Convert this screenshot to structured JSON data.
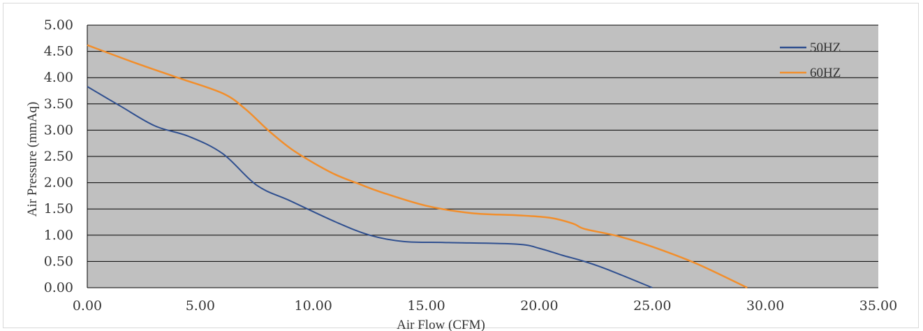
{
  "chart_data": {
    "type": "line",
    "xlabel": "Air Flow (CFM)",
    "ylabel": "Air Pressure (mmAq)",
    "xlim": [
      0,
      35
    ],
    "ylim": [
      0,
      5
    ],
    "x_ticks": [
      "0.00",
      "5.00",
      "10.00",
      "15.00",
      "20.00",
      "25.00",
      "30.00",
      "35.00"
    ],
    "y_ticks": [
      "0.00",
      "0.50",
      "1.00",
      "1.50",
      "2.00",
      "2.50",
      "3.00",
      "3.50",
      "4.00",
      "4.50",
      "5.00"
    ],
    "grid": "horizontal",
    "legend_position": "top-right",
    "plot_background": "#c0c0c0",
    "series": [
      {
        "name": "50HZ",
        "color": "#2f4f8f",
        "points": [
          [
            0,
            3.83
          ],
          [
            1.5,
            3.45
          ],
          [
            3,
            3.08
          ],
          [
            4.5,
            2.88
          ],
          [
            6,
            2.55
          ],
          [
            7.5,
            1.95
          ],
          [
            9,
            1.65
          ],
          [
            11,
            1.25
          ],
          [
            12.5,
            1.0
          ],
          [
            14,
            0.88
          ],
          [
            16,
            0.86
          ],
          [
            19,
            0.83
          ],
          [
            20,
            0.75
          ],
          [
            21,
            0.62
          ],
          [
            22,
            0.5
          ],
          [
            23,
            0.35
          ],
          [
            25,
            0.0
          ]
        ]
      },
      {
        "name": "60HZ",
        "color": "#f28e2b",
        "points": [
          [
            0,
            4.62
          ],
          [
            2,
            4.3
          ],
          [
            4,
            4.0
          ],
          [
            6,
            3.7
          ],
          [
            7,
            3.4
          ],
          [
            8,
            3.0
          ],
          [
            9,
            2.65
          ],
          [
            10,
            2.38
          ],
          [
            11,
            2.15
          ],
          [
            12,
            1.98
          ],
          [
            13,
            1.82
          ],
          [
            15,
            1.56
          ],
          [
            17,
            1.42
          ],
          [
            19,
            1.38
          ],
          [
            20.5,
            1.33
          ],
          [
            21.5,
            1.22
          ],
          [
            22,
            1.12
          ],
          [
            23.5,
            0.98
          ],
          [
            25,
            0.78
          ],
          [
            27,
            0.45
          ],
          [
            29.2,
            0.0
          ]
        ]
      }
    ]
  }
}
